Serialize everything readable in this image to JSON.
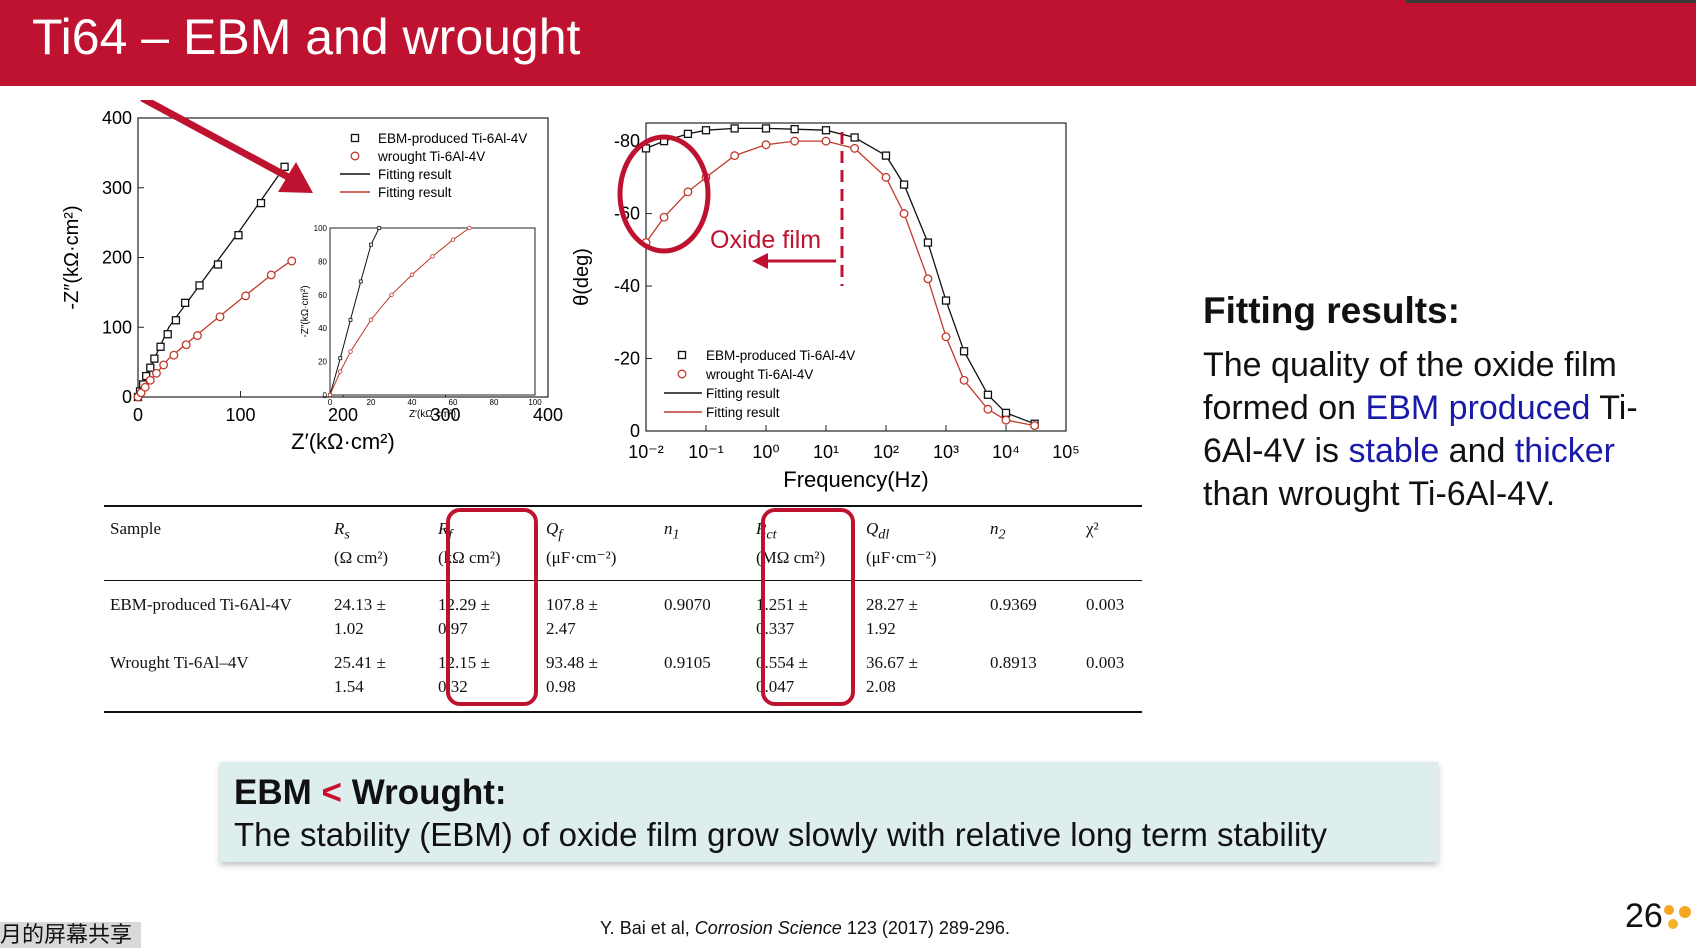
{
  "title": "Ti64 – EBM and wrought",
  "colors": {
    "brand": "#be1230",
    "ebm": "#111111",
    "wrought": "#c0392b",
    "accent_blue": "#1a1aaa",
    "box_bg": "#deeeef"
  },
  "chart_data": [
    {
      "type": "scatter",
      "title": "",
      "xlabel": "Z′(kΩ·cm²)",
      "ylabel": "-Z″(kΩ·cm²)",
      "xlim": [
        0,
        400
      ],
      "ylim": [
        0,
        400
      ],
      "xticks": [
        "0",
        "100",
        "200",
        "300",
        "400"
      ],
      "yticks": [
        "0",
        "100",
        "200",
        "300",
        "400"
      ],
      "legend": [
        "EBM-produced Ti-6Al-4V",
        "wrought Ti-6Al-4V",
        "Fitting result",
        "Fitting result"
      ],
      "legend_position": "top-right",
      "series": [
        {
          "name": "EBM-produced Ti-6Al-4V",
          "marker": "square",
          "x": [
            0,
            2,
            5,
            8,
            12,
            16,
            22,
            29,
            37,
            46,
            60,
            78,
            98,
            120,
            143
          ],
          "y": [
            0,
            8,
            18,
            30,
            42,
            55,
            72,
            90,
            110,
            135,
            160,
            190,
            232,
            278,
            330
          ]
        },
        {
          "name": "wrought Ti-6Al-4V",
          "marker": "circle",
          "x": [
            0,
            3,
            7,
            12,
            18,
            25,
            35,
            47,
            58,
            80,
            105,
            130,
            150
          ],
          "y": [
            0,
            6,
            14,
            24,
            34,
            46,
            60,
            75,
            88,
            115,
            145,
            175,
            195
          ]
        },
        {
          "name": "Fitting result",
          "style": "line",
          "x": [
            0,
            10,
            30,
            60,
            100,
            143
          ],
          "y": [
            0,
            36,
            100,
            160,
            240,
            330
          ]
        },
        {
          "name": "Fitting result",
          "style": "line",
          "x": [
            0,
            10,
            30,
            60,
            100,
            130,
            150
          ],
          "y": [
            0,
            20,
            55,
            92,
            140,
            175,
            196
          ]
        }
      ],
      "inset": {
        "xlabel": "Z′(kΩ·cm²)",
        "ylabel": "-Z″(kΩ·cm²)",
        "xlim": [
          0,
          100
        ],
        "ylim": [
          0,
          100
        ],
        "xticks": [
          "0",
          "20",
          "40",
          "60",
          "80",
          "100"
        ],
        "yticks": [
          "0",
          "20",
          "40",
          "60",
          "80",
          "100"
        ]
      }
    },
    {
      "type": "scatter",
      "title": "",
      "xlabel": "Frequency(Hz)",
      "ylabel": "θ(deg)",
      "xscale": "log",
      "xlim": [
        0.01,
        100000
      ],
      "ylim": [
        0,
        -85
      ],
      "xticks": [
        "10⁻²",
        "10⁻¹",
        "10⁰",
        "10¹",
        "10²",
        "10³",
        "10⁴",
        "10⁵"
      ],
      "yticks": [
        "0",
        "-20",
        "-40",
        "-60",
        "-80"
      ],
      "legend": [
        "EBM-produced Ti-6Al-4V",
        "wrought Ti-6Al-4V",
        "Fitting result",
        "Fitting result"
      ],
      "legend_position": "center-left",
      "annotation": "Oxide film",
      "series": [
        {
          "name": "EBM-produced Ti-6Al-4V",
          "marker": "square",
          "x": [
            0.01,
            0.02,
            0.05,
            0.1,
            0.3,
            1,
            3,
            10,
            30,
            100,
            200,
            500,
            1000,
            2000,
            5000,
            10000,
            30000
          ],
          "y": [
            -78,
            -80,
            -82,
            -83,
            -83.5,
            -83.5,
            -83.3,
            -83,
            -81,
            -76,
            -68,
            -52,
            -36,
            -22,
            -10,
            -5,
            -2
          ]
        },
        {
          "name": "wrought Ti-6Al-4V",
          "marker": "circle",
          "x": [
            0.01,
            0.02,
            0.05,
            0.1,
            0.3,
            1,
            3,
            10,
            30,
            100,
            200,
            500,
            1000,
            2000,
            5000,
            10000,
            30000
          ],
          "y": [
            -52,
            -59,
            -66,
            -70,
            -76,
            -79,
            -80,
            -80,
            -78,
            -70,
            -60,
            -42,
            -26,
            -14,
            -6,
            -3,
            -1.5
          ]
        }
      ]
    }
  ],
  "table": {
    "headers": [
      {
        "main": "Sample",
        "sub": ""
      },
      {
        "main": "Rs",
        "sub": "(Ω cm²)"
      },
      {
        "main": "Rf",
        "sub": "(kΩ cm²)"
      },
      {
        "main": "Qf",
        "sub": "(μF·cm⁻²)"
      },
      {
        "main": "n1",
        "sub": ""
      },
      {
        "main": "Rct",
        "sub": "(MΩ cm²)"
      },
      {
        "main": "Qdl",
        "sub": "(μF·cm⁻²)"
      },
      {
        "main": "n2",
        "sub": ""
      },
      {
        "main": "χ²",
        "sub": ""
      }
    ],
    "rows": [
      {
        "sample": "EBM-produced Ti-6Al-4V",
        "rs": "24.13 ±",
        "rs_err": "1.02",
        "rf": "12.29 ±",
        "rf_err": "0.97",
        "qf": "107.8 ±",
        "qf_err": "2.47",
        "n1": "0.9070",
        "rct": "1.251 ±",
        "rct_err": "0.337",
        "qdl": "28.27 ±",
        "qdl_err": "1.92",
        "n2": "0.9369",
        "chi2": "0.003"
      },
      {
        "sample": "Wrought Ti-6Al–4V",
        "rs": "25.41 ±",
        "rs_err": "1.54",
        "rf": "12.15 ±",
        "rf_err": "0.32",
        "qf": "93.48 ±",
        "qf_err": "0.98",
        "n1": "0.9105",
        "rct": "0.554 ±",
        "rct_err": "0.047",
        "qdl": "36.67 ±",
        "qdl_err": "2.08",
        "n2": "0.8913",
        "chi2": "0.003"
      }
    ]
  },
  "fitting": {
    "heading": "Fitting results:",
    "p1": "The quality of the oxide film formed on ",
    "p2": "EBM produced",
    "p3": " Ti-6Al-4V is ",
    "p4": "stable",
    "p5": " and ",
    "p6": "thicker",
    "p7": " than wrought Ti-6Al-4V."
  },
  "conclusion": {
    "left": "EBM",
    "op": "<",
    "right": "Wrought:",
    "text": "The stability (EBM) of oxide film grow slowly with relative long term stability"
  },
  "citation": {
    "authors": "Y. Bai et al, ",
    "journal": "Corrosion Science",
    "rest": " 123 (2017) 289-296."
  },
  "page_number": "26",
  "overlay_text": "月的屏幕共享"
}
